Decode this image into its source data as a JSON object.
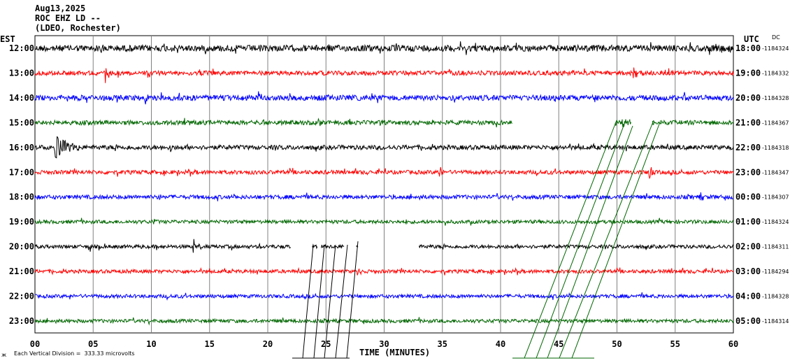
{
  "header": {
    "date": "Aug13,2025",
    "station": "ROC EHZ LD --",
    "network": "(LDEO, Rochester)"
  },
  "left_timezone": "EST",
  "right_timezone": "UTC",
  "dc_label": "DC",
  "scale_note": "Each Vertical Division =  333.33 microvolts",
  "corner_mark": "ж",
  "chart_data": {
    "type": "line",
    "title": "ROC EHZ LD --",
    "xlabel": "TIME (MINUTES)",
    "ylabel": "",
    "xlim": [
      0,
      60
    ],
    "xticks": [
      "00",
      "05",
      "10",
      "15",
      "20",
      "25",
      "30",
      "35",
      "40",
      "45",
      "50",
      "55",
      "60"
    ],
    "grid": true,
    "colors": [
      "#000000",
      "#ff0000",
      "#0000ff",
      "#006600"
    ],
    "series": [
      {
        "est": "12:00",
        "utc": "18:00",
        "dc": "-1184324",
        "color": "#000000",
        "amplitude": 1.4,
        "gaps": [],
        "events": [
          {
            "t": 58.5,
            "amp": 1.2,
            "dur": 1.5
          },
          {
            "t": 5.7,
            "amp": 1.0,
            "dur": 0.3
          }
        ]
      },
      {
        "est": "13:00",
        "utc": "19:00",
        "dc": "-1184332",
        "color": "#ff0000",
        "amplitude": 1.0,
        "gaps": [],
        "events": [
          {
            "t": 6.1,
            "amp": 3.0,
            "dur": 0.2
          },
          {
            "t": 51.4,
            "amp": 2.5,
            "dur": 0.8
          },
          {
            "t": 14.2,
            "amp": 1.6,
            "dur": 0.3
          }
        ]
      },
      {
        "est": "14:00",
        "utc": "20:00",
        "dc": "-1184328",
        "color": "#0000ff",
        "amplitude": 1.2,
        "gaps": [],
        "events": [
          {
            "t": 2.3,
            "amp": 1.8,
            "dur": 0.6
          },
          {
            "t": 19.2,
            "amp": 1.6,
            "dur": 0.5
          },
          {
            "t": 9.5,
            "amp": 1.3,
            "dur": 0.4
          }
        ]
      },
      {
        "est": "15:00",
        "utc": "21:00",
        "dc": "-1184367",
        "color": "#006600",
        "amplitude": 1.0,
        "gaps": [
          [
            41.0,
            49.8
          ],
          [
            51.2,
            53.0
          ]
        ],
        "events": [
          {
            "t": 50.5,
            "amp": 1.8,
            "dur": 0.8
          }
        ]
      },
      {
        "est": "16:00",
        "utc": "22:00",
        "dc": "-1184318",
        "color": "#000000",
        "amplitude": 1.0,
        "gaps": [],
        "events": [
          {
            "t": 1.8,
            "amp": 4.0,
            "dur": 2.0
          },
          {
            "t": 11.7,
            "amp": 1.4,
            "dur": 0.3
          }
        ]
      },
      {
        "est": "17:00",
        "utc": "23:00",
        "dc": "-1184347",
        "color": "#ff0000",
        "amplitude": 0.9,
        "gaps": [],
        "events": [
          {
            "t": 52.8,
            "amp": 1.6,
            "dur": 0.5
          },
          {
            "t": 34.8,
            "amp": 1.3,
            "dur": 0.3
          }
        ]
      },
      {
        "est": "18:00",
        "utc": "00:00",
        "dc": "-1184307",
        "color": "#0000ff",
        "amplitude": 0.9,
        "gaps": [],
        "events": [
          {
            "t": 57.2,
            "amp": 1.5,
            "dur": 0.3
          },
          {
            "t": 10.8,
            "amp": 1.2,
            "dur": 0.3
          }
        ]
      },
      {
        "est": "19:00",
        "utc": "01:00",
        "dc": "-1184324",
        "color": "#006600",
        "amplitude": 0.8,
        "gaps": [],
        "events": [
          {
            "t": 10.3,
            "amp": 1.2,
            "dur": 0.3
          }
        ]
      },
      {
        "est": "20:00",
        "utc": "02:00",
        "dc": "-1184311",
        "color": "#000000",
        "amplitude": 0.8,
        "gaps": [
          [
            22.0,
            23.8
          ],
          [
            24.3,
            24.6
          ],
          [
            26.6,
            27.6
          ],
          [
            27.8,
            33.0
          ]
        ],
        "events": [
          {
            "t": 4.8,
            "amp": 2.0,
            "dur": 0.2
          },
          {
            "t": 13.7,
            "amp": 2.2,
            "dur": 0.2
          }
        ]
      },
      {
        "est": "21:00",
        "utc": "03:00",
        "dc": "-1184294",
        "color": "#ff0000",
        "amplitude": 0.8,
        "gaps": [],
        "events": [
          {
            "t": 27.8,
            "amp": 1.3,
            "dur": 0.4
          }
        ]
      },
      {
        "est": "22:00",
        "utc": "04:00",
        "dc": "-1184328",
        "color": "#0000ff",
        "amplitude": 0.8,
        "gaps": [],
        "events": []
      },
      {
        "est": "23:00",
        "utc": "05:00",
        "dc": "-1184314",
        "color": "#006600",
        "amplitude": 0.8,
        "gaps": [],
        "events": []
      }
    ]
  }
}
